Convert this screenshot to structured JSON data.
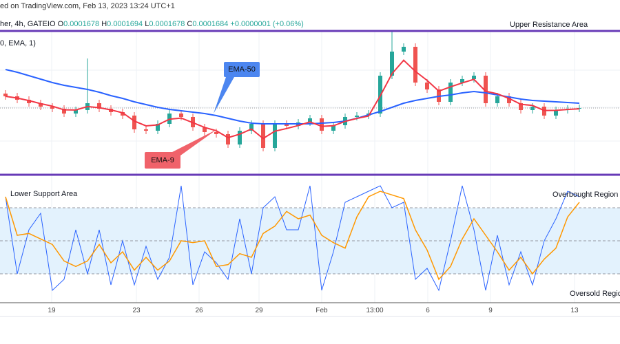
{
  "header": {
    "published": "ed on TradingView.com, Feb 13, 2023 13:24 UTC+1",
    "symbol": "her, 4h, GATEIO",
    "o_label": "O",
    "o": "0.0001678",
    "h_label": "H",
    "h": "0.0001694",
    "l_label": "L",
    "l": "0.0001678",
    "c_label": "C",
    "c": "0.0001684",
    "change": "+0.0000001 (+0.06%)",
    "indicator": "0, EMA, 1)"
  },
  "annotations": {
    "upper": "Upper Resistance Area",
    "lower": "Lower Support Area",
    "overbought": "Overbought Region",
    "oversold": "Oversold Regio",
    "ema50": "EMA-50",
    "ema9": "EMA-9"
  },
  "colors": {
    "up": "#26a69a",
    "down": "#ef5350",
    "ema50": "#2962ff",
    "ema9": "#f23645",
    "stoch_k": "#2962ff",
    "stoch_d": "#ff9800",
    "level_line": "#673ab7",
    "band": "#e3f2fd"
  },
  "chart_data": [
    {
      "type": "candlestick",
      "ylim": [
        0.0001587,
        0.0001796
      ],
      "close": [
        0.0001701,
        0.0001696,
        0.0001691,
        0.0001686,
        0.0001683,
        0.0001676,
        0.0001681,
        0.0001691,
        0.0001683,
        0.0001678,
        0.0001673,
        0.0001653,
        0.0001651,
        0.0001661,
        0.0001676,
        0.0001671,
        0.0001656,
        0.0001649,
        0.0001646,
        0.0001631,
        0.0001651,
        0.0001661,
        0.0001626,
        0.0001661,
        0.0001658,
        0.0001663,
        0.0001669,
        0.0001651,
        0.0001659,
        0.0001671,
        0.0001673,
        0.0001676,
        0.0001731,
        0.0001766,
        0.0001773,
        0.0001721,
        0.0001711,
        0.0001693,
        0.0001721,
        0.0001726,
        0.0001731,
        0.0001691,
        0.0001701,
        0.0001691,
        0.0001681,
        0.0001686,
        0.0001673,
        0.0001681,
        0.0001683,
        0.0001684
      ],
      "ema50": [
        0.000174,
        0.0001736,
        0.0001731,
        0.0001726,
        0.0001721,
        0.0001717,
        0.0001714,
        0.0001711,
        0.0001707,
        0.0001702,
        0.0001698,
        0.0001693,
        0.0001689,
        0.0001685,
        0.0001682,
        0.000168,
        0.0001678,
        0.0001676,
        0.0001673,
        0.0001669,
        0.0001665,
        0.0001662,
        0.0001661,
        0.0001661,
        0.0001661,
        0.0001661,
        0.0001661,
        0.0001662,
        0.0001663,
        0.0001665,
        0.0001669,
        0.0001674,
        0.0001679,
        0.0001685,
        0.0001691,
        0.0001695,
        0.0001698,
        0.0001701,
        0.0001703,
        0.0001706,
        0.0001708,
        0.0001706,
        0.0001703,
        0.00017,
        0.0001697,
        0.0001695,
        0.0001694,
        0.0001693,
        0.0001692,
        0.0001691
      ],
      "levels": [
        0.0001796,
        0.0001587
      ]
    },
    {
      "type": "line",
      "name": "stochastic",
      "ylim": [
        0,
        100
      ],
      "bands": [
        80,
        50,
        20
      ],
      "k": [
        90,
        20,
        60,
        75,
        5,
        15,
        60,
        20,
        60,
        10,
        50,
        10,
        45,
        15,
        35,
        100,
        10,
        40,
        30,
        15,
        70,
        20,
        80,
        90,
        60,
        60,
        100,
        5,
        40,
        85,
        90,
        95,
        100,
        80,
        85,
        15,
        25,
        5,
        50,
        100,
        60,
        5,
        55,
        10,
        40,
        10,
        50,
        70,
        95,
        90
      ]
    },
    {
      "x_ticks": [
        "19",
        "23",
        "26",
        "29",
        "Feb",
        "13:00",
        "6",
        "9",
        "13"
      ]
    }
  ]
}
